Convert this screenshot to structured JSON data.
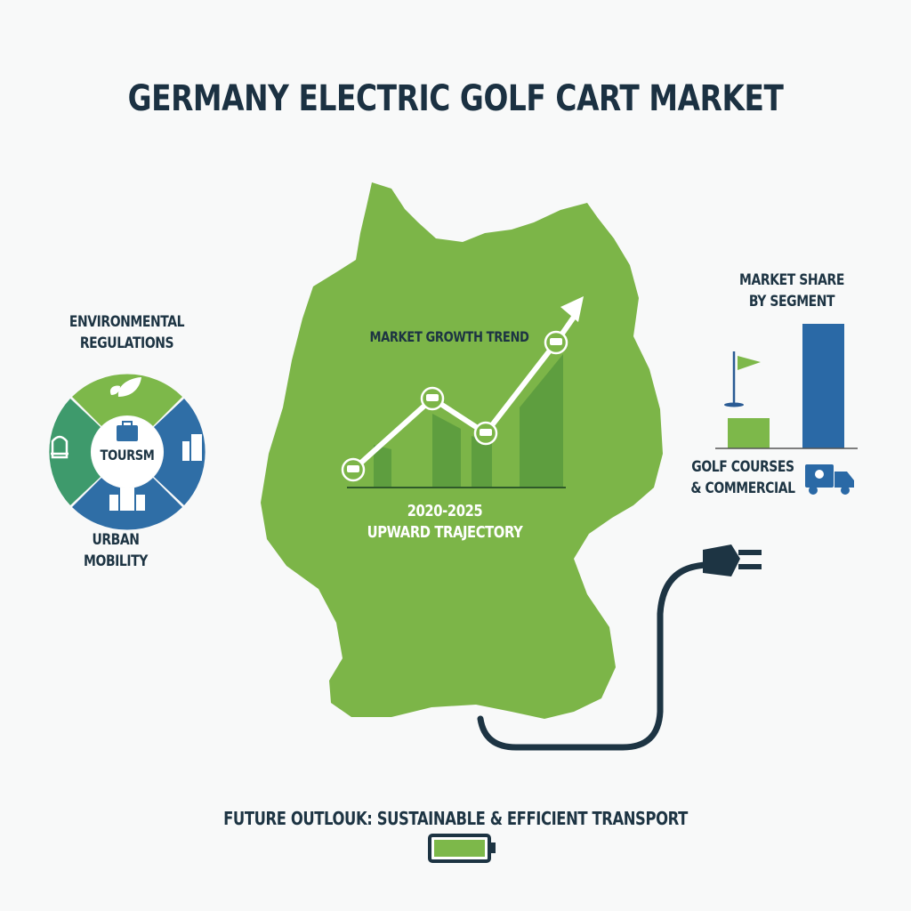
{
  "title": "GERMANY ELECTRIC GOLF CART MARKET",
  "drivers": {
    "top_label": "ENVIRONMENTAL REGULATIONS",
    "center_label": "TOURSM",
    "bottom_label": "URBAN MOBILITY",
    "segments": [
      {
        "icon": "leaf-icon",
        "color": "#7db84a"
      },
      {
        "icon": "buildings-icon",
        "color": "#2f6ea6"
      },
      {
        "icon": "city-buildings-icon",
        "color": "#2f6ea6"
      },
      {
        "icon": "golf-cart-front-icon",
        "color": "#3e9a6c"
      }
    ],
    "center_icon": "suitcase-icon"
  },
  "growth": {
    "title": "MARKET GROWTH TREND",
    "period": "2020-2025",
    "subtitle": "UPWARD TRAJECTORY",
    "trend": "upward",
    "marker_icon": "golf-cart-icon"
  },
  "segment_share": {
    "title_line1": "MARKET SHARE",
    "title_line2": "BY SEGMENT",
    "label_line1": "GOLF COURSES",
    "label_line2": "& COMMERCIAL",
    "bars": [
      {
        "segment_icon": "golf-flag-icon",
        "color": "#7db84a"
      },
      {
        "segment_icon": "delivery-truck-icon",
        "color": "#2a69a6"
      }
    ]
  },
  "footer": {
    "text": "FUTURE OUTLOUK: SUSTAINABLE & EFFICIENT TRANSPORT",
    "battery_icon": "battery-full-icon"
  },
  "colors": {
    "map_green": "#7cb548",
    "dark_text": "#1d3443",
    "blue": "#2f6ea6"
  }
}
